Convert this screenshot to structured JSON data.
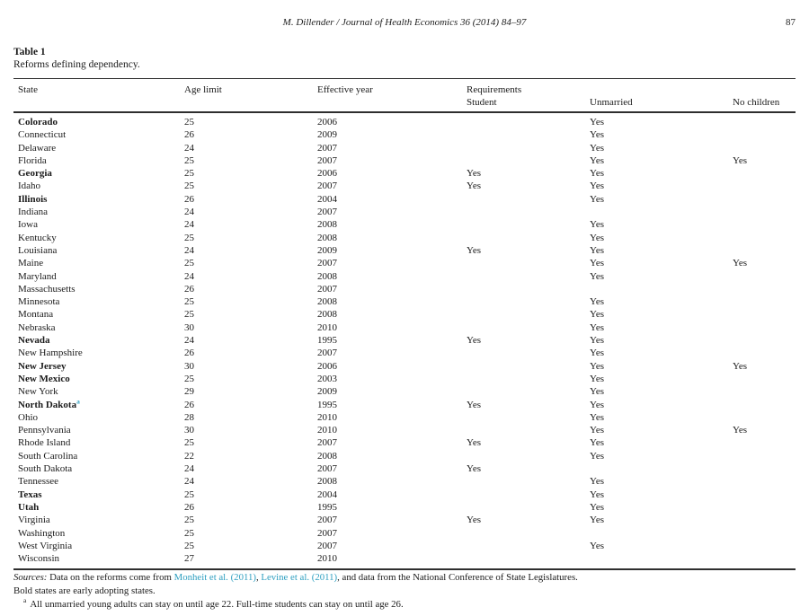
{
  "page": {
    "running_head": "M. Dillender / Journal of Health Economics 36 (2014) 84–97",
    "page_number": "87"
  },
  "table": {
    "label": "Table 1",
    "caption": "Reforms defining dependency.",
    "headers": {
      "state": "State",
      "age_limit": "Age limit",
      "effective_year": "Effective year",
      "requirements": "Requirements",
      "student": "Student",
      "unmarried": "Unmarried",
      "no_children": "No children"
    },
    "rows": [
      {
        "state": "Colorado",
        "bold": true,
        "age": "25",
        "year": "2006",
        "student": "",
        "unmarried": "Yes",
        "no_children": ""
      },
      {
        "state": "Connecticut",
        "bold": false,
        "age": "26",
        "year": "2009",
        "student": "",
        "unmarried": "Yes",
        "no_children": ""
      },
      {
        "state": "Delaware",
        "bold": false,
        "age": "24",
        "year": "2007",
        "student": "",
        "unmarried": "Yes",
        "no_children": ""
      },
      {
        "state": "Florida",
        "bold": false,
        "age": "25",
        "year": "2007",
        "student": "",
        "unmarried": "Yes",
        "no_children": "Yes"
      },
      {
        "state": "Georgia",
        "bold": true,
        "age": "25",
        "year": "2006",
        "student": "Yes",
        "unmarried": "Yes",
        "no_children": ""
      },
      {
        "state": "Idaho",
        "bold": false,
        "age": "25",
        "year": "2007",
        "student": "Yes",
        "unmarried": "Yes",
        "no_children": ""
      },
      {
        "state": "Illinois",
        "bold": true,
        "age": "26",
        "year": "2004",
        "student": "",
        "unmarried": "Yes",
        "no_children": ""
      },
      {
        "state": "Indiana",
        "bold": false,
        "age": "24",
        "year": "2007",
        "student": "",
        "unmarried": "",
        "no_children": ""
      },
      {
        "state": "Iowa",
        "bold": false,
        "age": "24",
        "year": "2008",
        "student": "",
        "unmarried": "Yes",
        "no_children": ""
      },
      {
        "state": "Kentucky",
        "bold": false,
        "age": "25",
        "year": "2008",
        "student": "",
        "unmarried": "Yes",
        "no_children": ""
      },
      {
        "state": "Louisiana",
        "bold": false,
        "age": "24",
        "year": "2009",
        "student": "Yes",
        "unmarried": "Yes",
        "no_children": ""
      },
      {
        "state": "Maine",
        "bold": false,
        "age": "25",
        "year": "2007",
        "student": "",
        "unmarried": "Yes",
        "no_children": "Yes"
      },
      {
        "state": "Maryland",
        "bold": false,
        "age": "24",
        "year": "2008",
        "student": "",
        "unmarried": "Yes",
        "no_children": ""
      },
      {
        "state": "Massachusetts",
        "bold": false,
        "age": "26",
        "year": "2007",
        "student": "",
        "unmarried": "",
        "no_children": ""
      },
      {
        "state": "Minnesota",
        "bold": false,
        "age": "25",
        "year": "2008",
        "student": "",
        "unmarried": "Yes",
        "no_children": ""
      },
      {
        "state": "Montana",
        "bold": false,
        "age": "25",
        "year": "2008",
        "student": "",
        "unmarried": "Yes",
        "no_children": ""
      },
      {
        "state": "Nebraska",
        "bold": false,
        "age": "30",
        "year": "2010",
        "student": "",
        "unmarried": "Yes",
        "no_children": ""
      },
      {
        "state": "Nevada",
        "bold": true,
        "age": "24",
        "year": "1995",
        "student": "Yes",
        "unmarried": "Yes",
        "no_children": ""
      },
      {
        "state": "New Hampshire",
        "bold": false,
        "age": "26",
        "year": "2007",
        "student": "",
        "unmarried": "Yes",
        "no_children": ""
      },
      {
        "state": "New Jersey",
        "bold": true,
        "age": "30",
        "year": "2006",
        "student": "",
        "unmarried": "Yes",
        "no_children": "Yes"
      },
      {
        "state": "New Mexico",
        "bold": true,
        "age": "25",
        "year": "2003",
        "student": "",
        "unmarried": "Yes",
        "no_children": ""
      },
      {
        "state": "New York",
        "bold": false,
        "age": "29",
        "year": "2009",
        "student": "",
        "unmarried": "Yes",
        "no_children": ""
      },
      {
        "state": "North Dakota",
        "bold": true,
        "marker": "a",
        "age": "26",
        "year": "1995",
        "student": "Yes",
        "unmarried": "Yes",
        "no_children": ""
      },
      {
        "state": "Ohio",
        "bold": false,
        "age": "28",
        "year": "2010",
        "student": "",
        "unmarried": "Yes",
        "no_children": ""
      },
      {
        "state": "Pennsylvania",
        "bold": false,
        "age": "30",
        "year": "2010",
        "student": "",
        "unmarried": "Yes",
        "no_children": "Yes"
      },
      {
        "state": "Rhode Island",
        "bold": false,
        "age": "25",
        "year": "2007",
        "student": "Yes",
        "unmarried": "Yes",
        "no_children": ""
      },
      {
        "state": "South Carolina",
        "bold": false,
        "age": "22",
        "year": "2008",
        "student": "",
        "unmarried": "Yes",
        "no_children": ""
      },
      {
        "state": "South Dakota",
        "bold": false,
        "age": "24",
        "year": "2007",
        "student": "Yes",
        "unmarried": "",
        "no_children": ""
      },
      {
        "state": "Tennessee",
        "bold": false,
        "age": "24",
        "year": "2008",
        "student": "",
        "unmarried": "Yes",
        "no_children": ""
      },
      {
        "state": "Texas",
        "bold": true,
        "age": "25",
        "year": "2004",
        "student": "",
        "unmarried": "Yes",
        "no_children": ""
      },
      {
        "state": "Utah",
        "bold": true,
        "age": "26",
        "year": "1995",
        "student": "",
        "unmarried": "Yes",
        "no_children": ""
      },
      {
        "state": "Virginia",
        "bold": false,
        "age": "25",
        "year": "2007",
        "student": "Yes",
        "unmarried": "Yes",
        "no_children": ""
      },
      {
        "state": "Washington",
        "bold": false,
        "age": "25",
        "year": "2007",
        "student": "",
        "unmarried": "",
        "no_children": ""
      },
      {
        "state": "West Virginia",
        "bold": false,
        "age": "25",
        "year": "2007",
        "student": "",
        "unmarried": "Yes",
        "no_children": ""
      },
      {
        "state": "Wisconsin",
        "bold": false,
        "age": "27",
        "year": "2010",
        "student": "",
        "unmarried": "",
        "no_children": ""
      }
    ]
  },
  "notes": {
    "sources_label": "Sources:",
    "sources_before": " Data on the reforms come from ",
    "ref1": "Monheit et al. (2011)",
    "between_refs": ", ",
    "ref2": "Levine et al. (2011)",
    "sources_after": ", and data from the National Conference of State Legislatures.",
    "bold_note": "Bold states are early adopting states.",
    "footnote_marker": "a",
    "footnote_text": "All unmarried young adults can stay on until age 22. Full-time students can stay on until age 26."
  },
  "colors": {
    "link": "#2e9fc0",
    "text": "#1b1b1b",
    "rule": "#2e2e2e"
  }
}
